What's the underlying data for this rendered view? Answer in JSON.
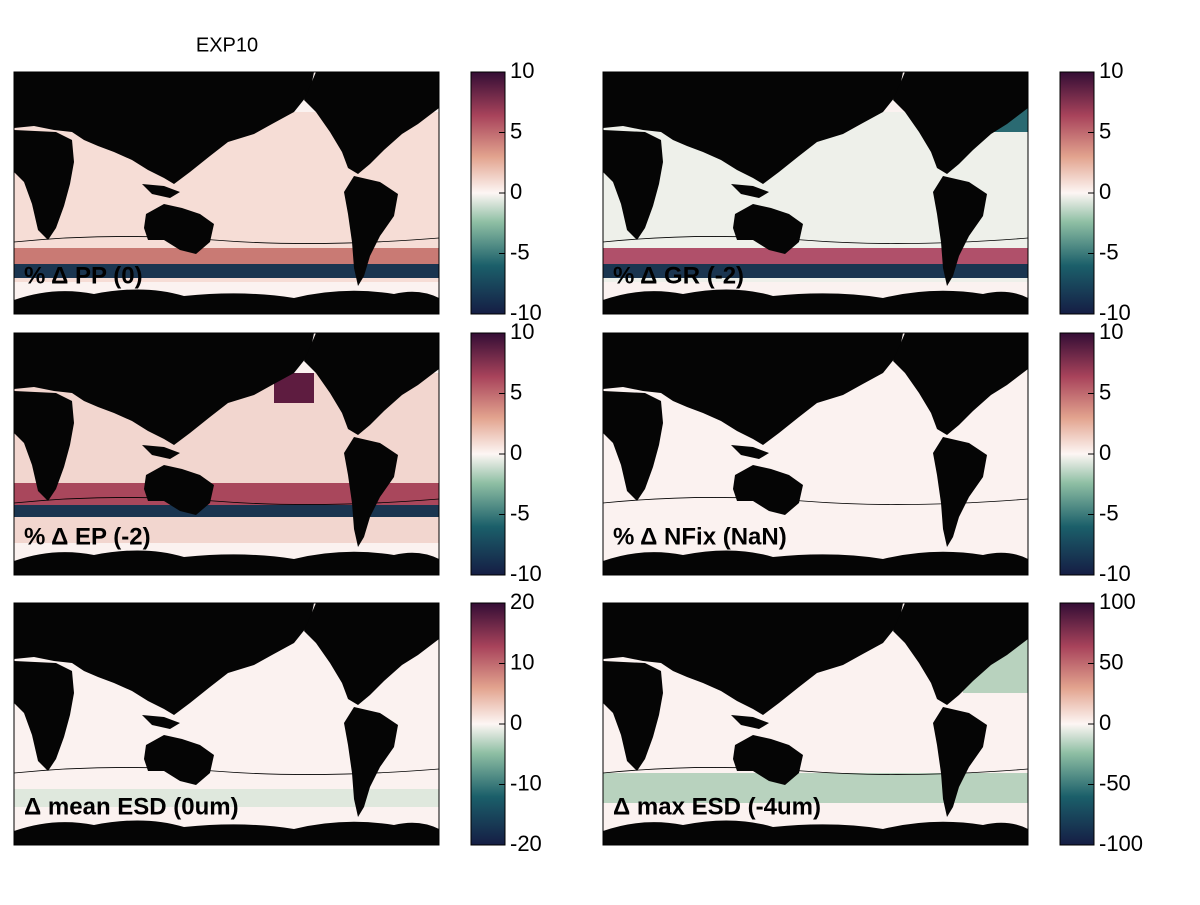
{
  "title": "EXP10",
  "panels": [
    {
      "label": "% Δ PP (0)",
      "colorbar": {
        "lim": [
          -10,
          10
        ],
        "ticks": [
          -10,
          -5,
          0,
          5,
          10
        ]
      }
    },
    {
      "label": "% Δ GR (-2)",
      "colorbar": {
        "lim": [
          -10,
          10
        ],
        "ticks": [
          -10,
          -5,
          0,
          5,
          10
        ]
      }
    },
    {
      "label": "% Δ EP (-2)",
      "colorbar": {
        "lim": [
          -10,
          10
        ],
        "ticks": [
          -10,
          -5,
          0,
          5,
          10
        ]
      }
    },
    {
      "label": "% Δ NFix (NaN)",
      "colorbar": {
        "lim": [
          -10,
          10
        ],
        "ticks": [
          -10,
          -5,
          0,
          5,
          10
        ]
      }
    },
    {
      "label": "Δ mean ESD (0um)",
      "colorbar": {
        "lim": [
          -20,
          20
        ],
        "ticks": [
          -20,
          -10,
          0,
          10,
          20
        ]
      }
    },
    {
      "label": "Δ max ESD (-4um)",
      "colorbar": {
        "lim": [
          -100,
          100
        ],
        "ticks": [
          -100,
          -50,
          0,
          50,
          100
        ]
      }
    }
  ]
}
